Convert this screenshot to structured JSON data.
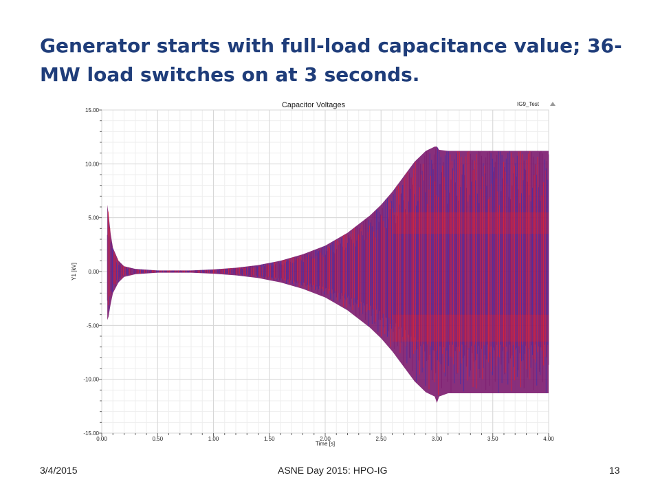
{
  "slide": {
    "title": "Generator starts with full-load capacitance value; 36-MW load switches on at 3 seconds."
  },
  "footer": {
    "date": "3/4/2015",
    "center": "ASNE Day 2015: HPO-IG",
    "page": "13"
  },
  "chart_data": {
    "type": "line",
    "title": "Capacitor Voltages",
    "legend_label": "IG9_Test",
    "xlabel": "Time [s]",
    "ylabel": "Y1 [kV]",
    "xlim": [
      0,
      4
    ],
    "ylim": [
      -15,
      15
    ],
    "x_ticks": [
      "0.00",
      "0.50",
      "1.00",
      "1.50",
      "2.00",
      "2.50",
      "3.00",
      "3.50",
      "4.00"
    ],
    "y_ticks": [
      "15.00",
      "10.00",
      "5.00",
      "0.00",
      "-5.00",
      "-10.00",
      "-15.00"
    ],
    "grid": true,
    "legend_position": "top-right",
    "envelope": {
      "x": [
        0.05,
        0.06,
        0.08,
        0.1,
        0.15,
        0.2,
        0.3,
        0.5,
        0.8,
        1.0,
        1.2,
        1.4,
        1.6,
        1.8,
        2.0,
        2.2,
        2.4,
        2.5,
        2.6,
        2.7,
        2.8,
        2.9,
        2.98,
        3.0,
        3.02,
        3.1,
        3.5,
        4.0
      ],
      "upper": [
        6.2,
        5.4,
        3.5,
        2.2,
        1.0,
        0.5,
        0.25,
        0.1,
        0.1,
        0.2,
        0.35,
        0.6,
        1.0,
        1.6,
        2.4,
        3.6,
        5.2,
        6.2,
        7.4,
        8.8,
        10.2,
        11.2,
        11.6,
        11.6,
        11.3,
        11.2,
        11.2,
        11.2
      ],
      "lower": [
        -4.5,
        -4.2,
        -3.0,
        -2.0,
        -1.0,
        -0.5,
        -0.25,
        -0.1,
        -0.1,
        -0.2,
        -0.35,
        -0.6,
        -1.0,
        -1.6,
        -2.4,
        -3.6,
        -5.2,
        -6.2,
        -7.4,
        -8.8,
        -10.2,
        -11.2,
        -11.6,
        -12.2,
        -11.6,
        -11.3,
        -11.3,
        -11.3
      ]
    },
    "series_colors": [
      "#7b1a6e",
      "#e8202a",
      "#3a2fb0"
    ]
  }
}
